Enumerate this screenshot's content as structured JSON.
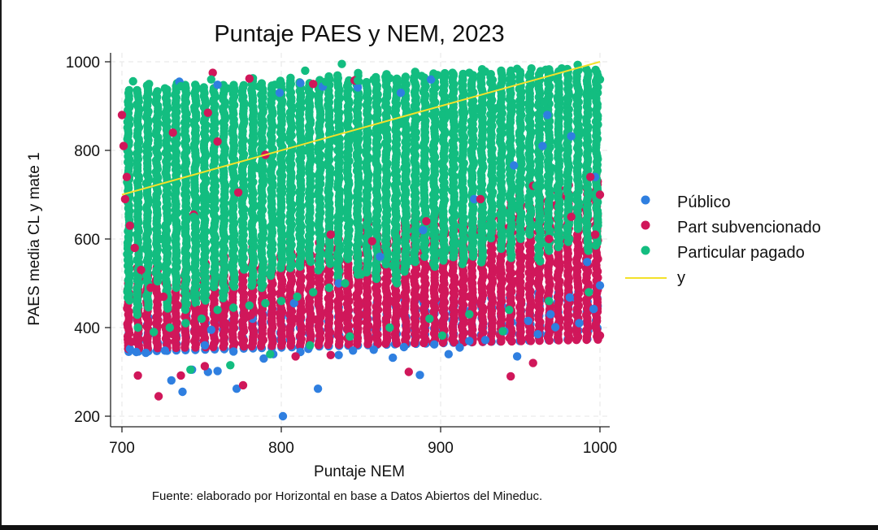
{
  "colors": {
    "publico": "#2f7fe0",
    "subvencionado": "#d0175a",
    "pagado": "#13bd80",
    "line": "#f3e12a"
  },
  "chart_data": {
    "type": "scatter",
    "title": "Puntaje PAES y NEM, 2023",
    "xlabel": "Puntaje NEM",
    "ylabel": "PAES media CL y mate 1",
    "note": "Fuente: elaborado por Horizontal en base a Datos Abiertos del Mineduc.",
    "xlim": [
      700,
      1000
    ],
    "ylim": [
      200,
      1000
    ],
    "x_ticks": [
      700,
      800,
      900,
      1000
    ],
    "y_ticks": [
      200,
      400,
      600,
      800,
      1000
    ],
    "grid": true,
    "legend_position": "right",
    "series": [
      {
        "name": "Público",
        "color_key": "publico",
        "points": [
          [
            738,
            255
          ],
          [
            760,
            302
          ],
          [
            772,
            262
          ],
          [
            801,
            200
          ],
          [
            823,
            262
          ],
          [
            887,
            293
          ],
          [
            905,
            340
          ],
          [
            948,
            335
          ],
          [
            731,
            281
          ],
          [
            744,
            305
          ],
          [
            715,
            343
          ],
          [
            754,
            300
          ],
          [
            789,
            330
          ],
          [
            812,
            345
          ],
          [
            836,
            338
          ],
          [
            858,
            350
          ],
          [
            870,
            332
          ],
          [
            912,
            355
          ],
          [
            928,
            372
          ],
          [
            961,
            385
          ],
          [
            972,
            401
          ],
          [
            987,
            410
          ],
          [
            996,
            442
          ],
          [
            1000,
            495
          ],
          [
            992,
            548
          ],
          [
            981,
            468
          ],
          [
            969,
            430
          ],
          [
            955,
            415
          ],
          [
            940,
            392
          ],
          [
            918,
            370
          ],
          [
            896,
            362
          ],
          [
            877,
            356
          ],
          [
            845,
            348
          ],
          [
            817,
            352
          ],
          [
            795,
            340
          ],
          [
            770,
            346
          ],
          [
            752,
            360
          ],
          [
            727,
            348
          ],
          [
            709,
            345
          ],
          [
            705,
            352
          ],
          [
            736,
            955
          ],
          [
            760,
            948
          ],
          [
            799,
            930
          ],
          [
            812,
            952
          ],
          [
            826,
            944
          ],
          [
            848,
            942
          ],
          [
            875,
            930
          ],
          [
            894,
            960
          ],
          [
            967,
            880
          ],
          [
            982,
            832
          ],
          [
            997,
            740
          ],
          [
            964,
            810
          ],
          [
            946,
            766
          ],
          [
            921,
            690
          ],
          [
            889,
            620
          ],
          [
            862,
            560
          ],
          [
            836,
            500
          ],
          [
            808,
            455
          ],
          [
            782,
            420
          ],
          [
            756,
            395
          ]
        ]
      },
      {
        "name": "Part subvencionado",
        "color_key": "subvencionado",
        "points": [
          [
            723,
            245
          ],
          [
            737,
            292
          ],
          [
            752,
            313
          ],
          [
            776,
            270
          ],
          [
            809,
            335
          ],
          [
            831,
            338
          ],
          [
            880,
            300
          ],
          [
            944,
            290
          ],
          [
            958,
            320
          ],
          [
            1000,
            382
          ],
          [
            710,
            292
          ],
          [
            700,
            880
          ],
          [
            701,
            810
          ],
          [
            703,
            740
          ],
          [
            702,
            690
          ],
          [
            705,
            630
          ],
          [
            708,
            580
          ],
          [
            712,
            530
          ],
          [
            718,
            490
          ],
          [
            726,
            470
          ],
          [
            735,
            450
          ],
          [
            748,
            440
          ],
          [
            762,
            430
          ],
          [
            779,
            425
          ],
          [
            794,
            420
          ],
          [
            808,
            420
          ],
          [
            822,
            418
          ],
          [
            838,
            425
          ],
          [
            853,
            430
          ],
          [
            866,
            440
          ],
          [
            884,
            445
          ],
          [
            902,
            455
          ],
          [
            918,
            470
          ],
          [
            931,
            490
          ],
          [
            946,
            505
          ],
          [
            960,
            525
          ],
          [
            973,
            545
          ],
          [
            986,
            575
          ],
          [
            997,
            610
          ],
          [
            1000,
            700
          ],
          [
            994,
            740
          ],
          [
            982,
            650
          ],
          [
            968,
            600
          ],
          [
            951,
            560
          ],
          [
            936,
            530
          ],
          [
            920,
            500
          ],
          [
            901,
            485
          ],
          [
            885,
            470
          ],
          [
            869,
            460
          ],
          [
            849,
            452
          ],
          [
            830,
            445
          ],
          [
            813,
            438
          ],
          [
            799,
            432
          ],
          [
            781,
            428
          ],
          [
            765,
            410
          ],
          [
            749,
            395
          ],
          [
            732,
            385
          ],
          [
            716,
            375
          ],
          [
            706,
            368
          ],
          [
            757,
            975
          ],
          [
            780,
            962
          ],
          [
            820,
            950
          ],
          [
            846,
            958
          ],
          [
            754,
            885
          ],
          [
            732,
            840
          ],
          [
            760,
            820
          ],
          [
            790,
            790
          ],
          [
            745,
            655
          ],
          [
            773,
            705
          ],
          [
            831,
            610
          ],
          [
            857,
            595
          ],
          [
            891,
            640
          ],
          [
            925,
            690
          ],
          [
            958,
            720
          ]
        ]
      },
      {
        "name": "Particular pagado",
        "color_key": "pagado",
        "points": [
          [
            838,
            995
          ],
          [
            815,
            980
          ],
          [
            986,
            993
          ],
          [
            976,
            985
          ],
          [
            966,
            982
          ],
          [
            957,
            985
          ],
          [
            948,
            984
          ],
          [
            938,
            980
          ],
          [
            928,
            978
          ],
          [
            918,
            975
          ],
          [
            908,
            972
          ],
          [
            898,
            970
          ],
          [
            888,
            968
          ],
          [
            878,
            966
          ],
          [
            868,
            963
          ],
          [
            858,
            960
          ],
          [
            848,
            958
          ],
          [
            828,
            955
          ],
          [
            806,
            950
          ],
          [
            796,
            948
          ],
          [
            786,
            944
          ],
          [
            776,
            942
          ],
          [
            766,
            940
          ],
          [
            756,
            960
          ],
          [
            746,
            948
          ],
          [
            737,
            945
          ],
          [
            727,
            940
          ],
          [
            717,
            950
          ],
          [
            707,
            956
          ],
          [
            704,
            555
          ],
          [
            715,
            580
          ],
          [
            725,
            600
          ],
          [
            735,
            625
          ],
          [
            745,
            650
          ],
          [
            755,
            690
          ],
          [
            765,
            720
          ],
          [
            775,
            740
          ],
          [
            785,
            760
          ],
          [
            795,
            770
          ],
          [
            805,
            780
          ],
          [
            815,
            800
          ],
          [
            825,
            810
          ],
          [
            835,
            820
          ],
          [
            845,
            830
          ],
          [
            855,
            840
          ],
          [
            865,
            850
          ],
          [
            875,
            860
          ],
          [
            885,
            870
          ],
          [
            895,
            880
          ],
          [
            905,
            880
          ],
          [
            915,
            885
          ],
          [
            925,
            890
          ],
          [
            935,
            895
          ],
          [
            945,
            900
          ],
          [
            955,
            905
          ],
          [
            965,
            910
          ],
          [
            975,
            915
          ],
          [
            985,
            920
          ],
          [
            995,
            925
          ],
          [
            1000,
            960
          ],
          [
            998,
            880
          ],
          [
            990,
            840
          ],
          [
            980,
            800
          ],
          [
            970,
            760
          ],
          [
            960,
            720
          ],
          [
            950,
            690
          ],
          [
            940,
            660
          ],
          [
            930,
            630
          ],
          [
            920,
            610
          ],
          [
            910,
            590
          ],
          [
            900,
            570
          ],
          [
            890,
            560
          ],
          [
            880,
            550
          ],
          [
            870,
            540
          ],
          [
            860,
            530
          ],
          [
            850,
            520
          ],
          [
            840,
            500
          ],
          [
            830,
            490
          ],
          [
            820,
            480
          ],
          [
            810,
            470
          ],
          [
            800,
            460
          ],
          [
            790,
            455
          ],
          [
            780,
            450
          ],
          [
            770,
            445
          ],
          [
            760,
            440
          ],
          [
            750,
            420
          ],
          [
            740,
            410
          ],
          [
            730,
            400
          ],
          [
            720,
            390
          ],
          [
            710,
            400
          ],
          [
            901,
            382
          ],
          [
            939,
            392
          ],
          [
            743,
            305
          ],
          [
            768,
            315
          ],
          [
            793,
            340
          ],
          [
            818,
            360
          ],
          [
            843,
            380
          ],
          [
            868,
            400
          ],
          [
            893,
            420
          ],
          [
            918,
            430
          ],
          [
            943,
            440
          ],
          [
            968,
            460
          ],
          [
            993,
            480
          ]
        ]
      },
      {
        "name": "y",
        "type": "line",
        "color_key": "line",
        "x": [
          700,
          1000
        ],
        "y": [
          700,
          1000
        ]
      }
    ]
  }
}
